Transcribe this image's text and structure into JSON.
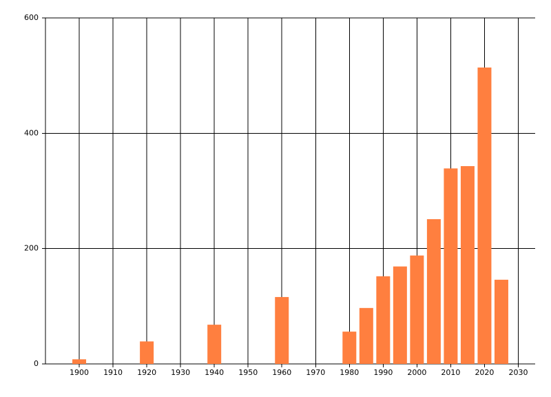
{
  "chart_data": {
    "type": "bar",
    "x": [
      1900,
      1920,
      1940,
      1960,
      1980,
      1985,
      1990,
      1995,
      2000,
      2005,
      2010,
      2015,
      2020,
      2025
    ],
    "values": [
      8,
      39,
      68,
      116,
      56,
      97,
      152,
      169,
      188,
      251,
      339,
      343,
      514,
      146
    ],
    "color": "#ff7f3f",
    "xlim": [
      1890,
      2035
    ],
    "xticks": [
      1900,
      1910,
      1920,
      1930,
      1940,
      1950,
      1960,
      1970,
      1980,
      1990,
      2000,
      2010,
      2020,
      2030
    ],
    "ylim": [
      0,
      600
    ],
    "yticks": [
      0,
      200,
      400,
      600
    ],
    "grid": true
  }
}
